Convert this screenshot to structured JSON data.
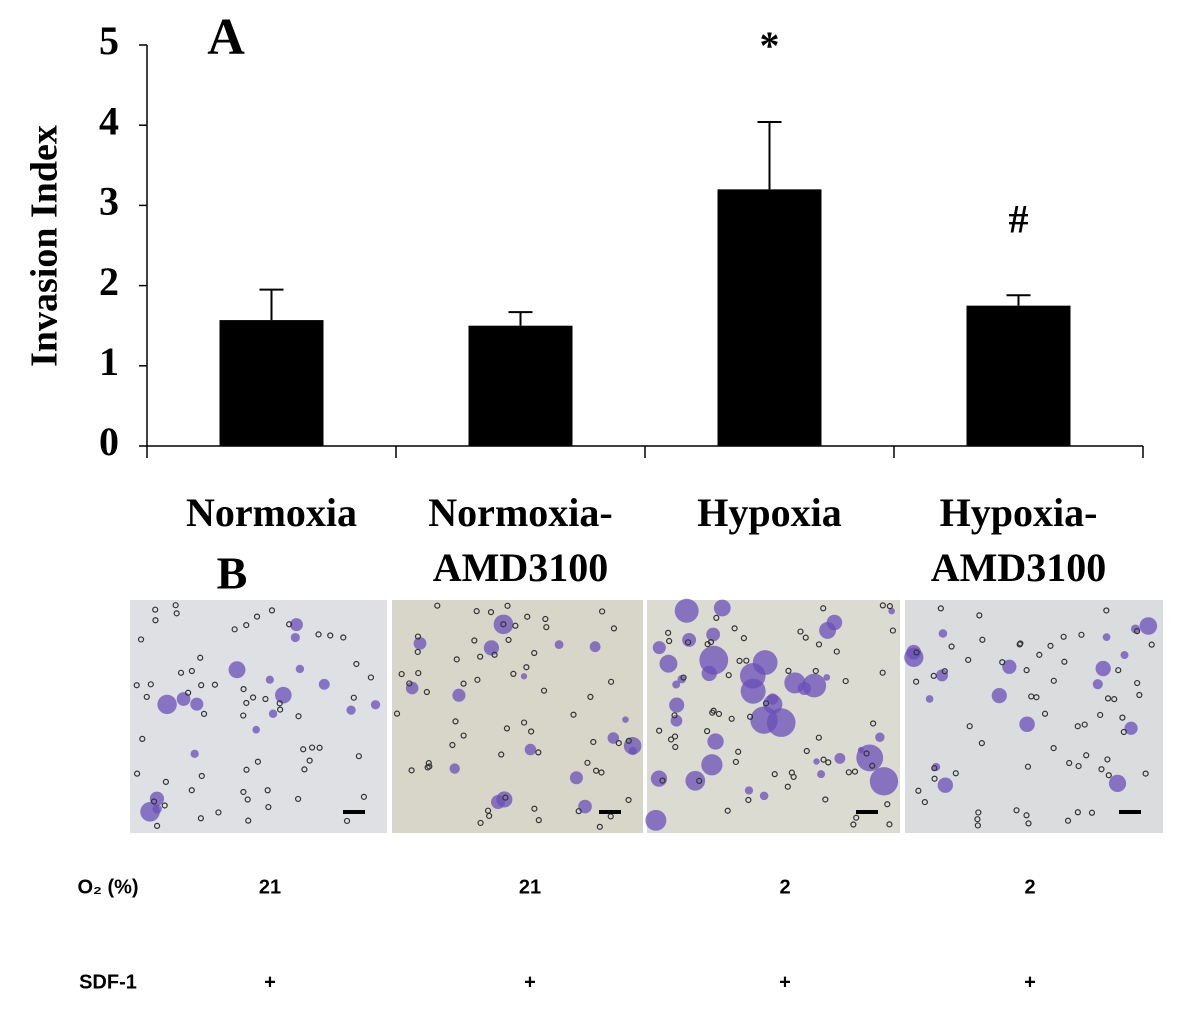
{
  "chart_data": {
    "type": "bar",
    "panel": "A",
    "ylabel": "Invasion Index",
    "categories": [
      "Normoxia",
      "Normoxia-AMD3100",
      "Hypoxia",
      "Hypoxia-AMD3100"
    ],
    "values": [
      1.57,
      1.5,
      3.2,
      1.75
    ],
    "errors": [
      0.38,
      0.17,
      0.84,
      0.13
    ],
    "annotations": [
      null,
      null,
      "*",
      "#"
    ],
    "color": "#000000",
    "ylim": [
      0,
      5
    ],
    "yticks": [
      0,
      1,
      2,
      3,
      4,
      5
    ]
  },
  "images": {
    "panel": "B"
  },
  "table": {
    "rows": [
      [
        "O₂ (%)",
        "21",
        "21",
        "2",
        "2"
      ],
      [
        "SDF-1",
        "+",
        "+",
        "+",
        "+"
      ]
    ]
  }
}
